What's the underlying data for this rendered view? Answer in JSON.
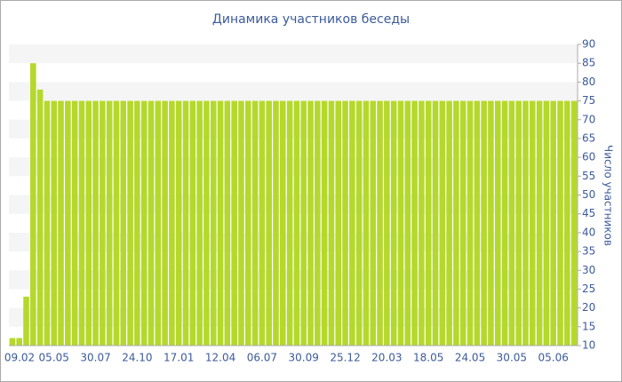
{
  "chart_data": {
    "type": "bar",
    "title": "Динамика участников беседы",
    "y_label": "Число участников",
    "categories": [
      "09.02",
      null,
      null,
      null,
      null,
      null,
      "05.05",
      null,
      null,
      null,
      null,
      null,
      "30.07",
      null,
      null,
      null,
      null,
      null,
      "24.10",
      null,
      null,
      null,
      null,
      null,
      "17.01",
      null,
      null,
      null,
      null,
      null,
      "12.04",
      null,
      null,
      null,
      null,
      null,
      "06.07",
      null,
      null,
      null,
      null,
      null,
      "30.09",
      null,
      null,
      null,
      null,
      null,
      "25.12",
      null,
      null,
      null,
      null,
      null,
      "20.03",
      null,
      null,
      null,
      null,
      null,
      "18.05",
      null,
      null,
      null,
      null,
      null,
      "24.05",
      null,
      null,
      null,
      null,
      null,
      "30.05",
      null,
      null,
      null,
      null,
      null,
      "05.06",
      null,
      null,
      null
    ],
    "values": [
      12,
      12,
      23,
      85,
      78,
      75,
      75,
      75,
      75,
      75,
      75,
      75,
      75,
      75,
      75,
      75,
      75,
      75,
      75,
      75,
      75,
      75,
      75,
      75,
      75,
      75,
      75,
      75,
      75,
      75,
      75,
      75,
      75,
      75,
      75,
      75,
      75,
      75,
      75,
      75,
      75,
      75,
      75,
      75,
      75,
      75,
      75,
      75,
      75,
      75,
      75,
      75,
      75,
      75,
      75,
      75,
      75,
      75,
      75,
      75,
      75,
      75,
      75,
      75,
      75,
      75,
      75,
      75,
      75,
      75,
      75,
      75,
      75,
      75,
      75,
      75,
      75,
      75,
      75,
      75,
      75,
      75
    ],
    "color": "#b5d82c",
    "ylim": [
      10,
      90
    ],
    "yticks": [
      10,
      15,
      20,
      25,
      30,
      35,
      40,
      45,
      50,
      55,
      60,
      65,
      70,
      75,
      80,
      85,
      90
    ],
    "grid": true
  }
}
